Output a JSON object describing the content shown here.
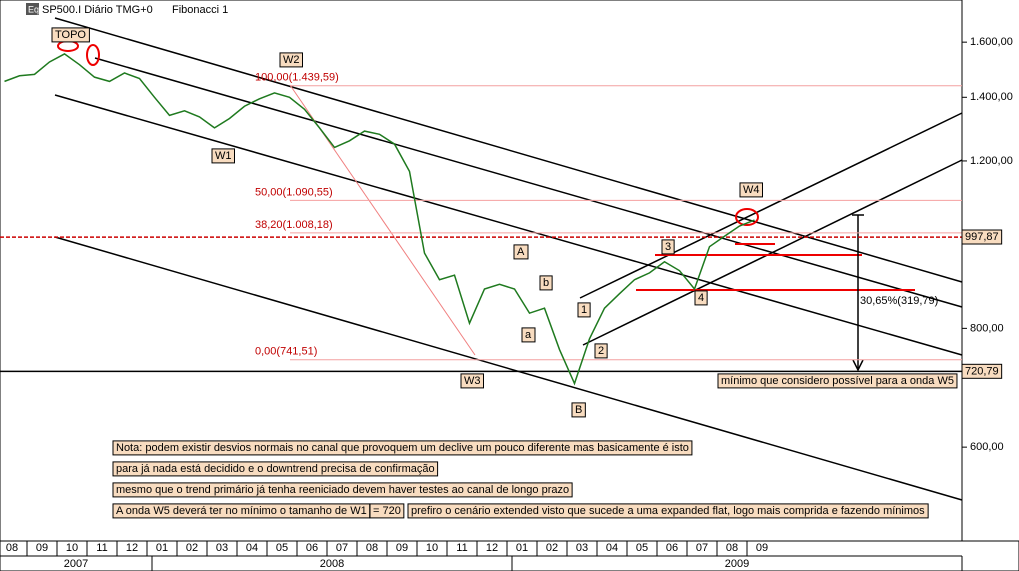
{
  "chart_data": {
    "type": "line",
    "title": "SP500.I Diário TMG+0",
    "indicator": "Fibonacci 1",
    "log_scale": true,
    "color": "#1f7a1f",
    "categories": [
      "08",
      null,
      "09",
      null,
      "10",
      null,
      "11",
      null,
      "12",
      null,
      "01",
      null,
      "02",
      null,
      "03",
      null,
      "04",
      null,
      "05",
      null,
      "06",
      null,
      "07",
      null,
      "08",
      null,
      "09",
      null,
      "10",
      null,
      "11",
      null,
      "12",
      null,
      "01",
      null,
      "02",
      null,
      "03",
      null,
      "04",
      null,
      "05",
      null,
      "06",
      null,
      "07",
      null,
      "08",
      null,
      "09",
      null
    ],
    "values": [
      1455,
      1475,
      1480,
      1525,
      1555,
      1515,
      1470,
      1455,
      1485,
      1465,
      1400,
      1340,
      1355,
      1335,
      1300,
      1330,
      1370,
      1395,
      1415,
      1400,
      1360,
      1300,
      1240,
      1260,
      1290,
      1280,
      1250,
      1170,
      960,
      900,
      910,
      810,
      880,
      890,
      880,
      830,
      840,
      760,
      700,
      780,
      840,
      870,
      900,
      915,
      940,
      920,
      880,
      975,
      1000,
      1025,
      1040,
      null
    ],
    "year_labels": [
      "2007",
      "2008",
      "2009"
    ],
    "ylim": [
      478,
      1772
    ],
    "yticks": [
      {
        "value": 600,
        "label": "600,00"
      },
      {
        "value": 800,
        "label": "800,00"
      },
      {
        "value": 1200,
        "label": "1.200,00"
      },
      {
        "value": 1400,
        "label": "1.400,00"
      },
      {
        "value": 1600,
        "label": "1.600,00"
      }
    ],
    "fib_levels": [
      {
        "value": 1439.59,
        "label": "100,00(1.439,59)"
      },
      {
        "value": 1090.55,
        "label": "50,00(1.090,55)"
      },
      {
        "value": 1008.18,
        "label": "38,20(1.008,18)"
      },
      {
        "value": 741.51,
        "label": "0,00(741,51)"
      }
    ],
    "price_markers": [
      {
        "value": 997.87,
        "label": "997,87"
      },
      {
        "value": 720.79,
        "label": "720,79"
      }
    ],
    "wave_labels": [
      "TOPO",
      "W1",
      "W2",
      "W3",
      "W4",
      "A",
      "b",
      "a",
      "B",
      "1",
      "2",
      "3",
      "4"
    ],
    "retracement_label": "30,65%(319,79)",
    "w5_note": "mínimo que considero possível para a onda W5",
    "notes": [
      "Nota: podem existir desvios normais no canal que provoquem um declive um pouco diferente mas basicamente é isto",
      "para já nada está decidido e o downtrend precisa de confirmação",
      "mesmo que o trend primário já tenha reeniciado devem haver testes ao canal de longo prazo",
      "A onda W5 deverá ter no mínimo o tamanho de W1",
      "= 720",
      "prefiro o cenário extended visto que sucede a uma expanded flat, logo mais comprida e fazendo mínimos"
    ]
  }
}
